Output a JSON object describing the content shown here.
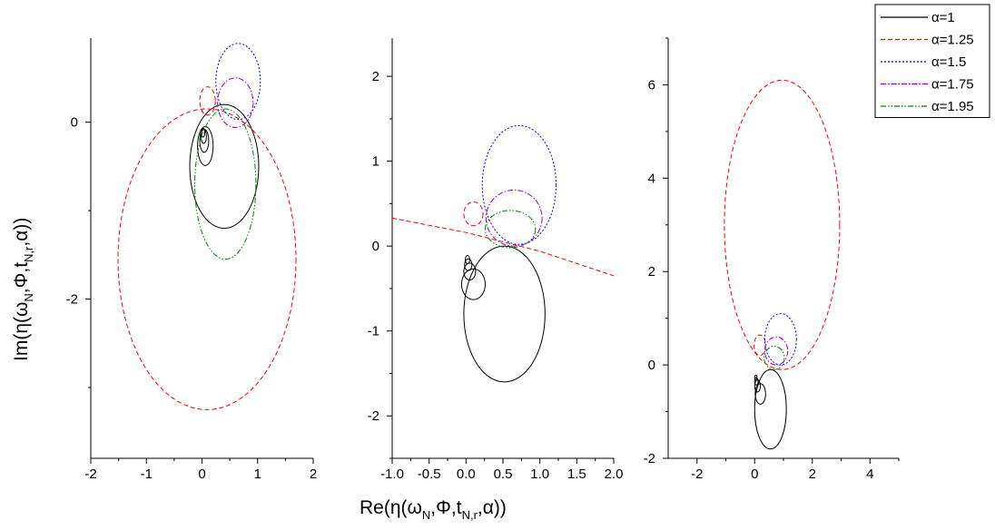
{
  "chart_data": {
    "type": "line",
    "xlabel_parts": [
      "Re(η(ω",
      "N",
      ",Φ,t",
      "N,r",
      ",α))"
    ],
    "ylabel_parts": [
      "Im(η(ω",
      "N",
      ",Φ,t",
      "N,r",
      ",α))"
    ],
    "legend": {
      "placement": "top-right",
      "entries": [
        {
          "label": "α=1",
          "color": "#000000",
          "dash": "solid"
        },
        {
          "label": "α=1.25",
          "color": "#ff0000",
          "dash": "dashed"
        },
        {
          "label": "α=1.5",
          "color": "#0000ff",
          "dash": "dotted"
        },
        {
          "label": "α=1.75",
          "color": "#9900cc",
          "dash": "dashdot"
        },
        {
          "label": "α=1.95",
          "color": "#008000",
          "dash": "dashdotdot"
        }
      ]
    },
    "panels": [
      {
        "name": "left",
        "xlim": [
          -2,
          2
        ],
        "ylim": [
          -3.8,
          0.95
        ],
        "xticks": [
          -2,
          -1,
          0,
          1,
          2
        ],
        "yticks": [
          -2,
          0
        ],
        "xtick_labels": [
          "-2",
          "-1",
          "0",
          "1",
          "2"
        ],
        "ytick_labels": [
          "-2",
          "0"
        ],
        "series": [
          {
            "alpha": "1",
            "curves": [
              {
                "center": [
                  0.4,
                  -0.5
                ],
                "rx": 0.62,
                "ry": 0.7
              },
              {
                "center": [
                  0.06,
                  -0.27
                ],
                "rx": 0.14,
                "ry": 0.22
              },
              {
                "center": [
                  0.04,
                  -0.21
                ],
                "rx": 0.08,
                "ry": 0.13
              },
              {
                "center": [
                  0.03,
                  -0.16
                ],
                "rx": 0.05,
                "ry": 0.08
              },
              {
                "center": [
                  0.02,
                  -0.12
                ],
                "rx": 0.03,
                "ry": 0.05
              }
            ]
          },
          {
            "alpha": "1.25",
            "curves": [
              {
                "center": [
                  0.09,
                  -1.55
                ],
                "rx": 1.6,
                "ry": 1.7
              },
              {
                "center": [
                  0.1,
                  0.24
                ],
                "rx": 0.14,
                "ry": 0.16
              }
            ]
          },
          {
            "alpha": "1.5",
            "curves": [
              {
                "center": [
                  0.65,
                  0.46
                ],
                "rx": 0.4,
                "ry": 0.43
              }
            ]
          },
          {
            "alpha": "1.75",
            "curves": [
              {
                "center": [
                  0.6,
                  0.22
                ],
                "rx": 0.32,
                "ry": 0.28
              }
            ]
          },
          {
            "alpha": "1.95",
            "curves": [
              {
                "center": [
                  0.42,
                  -0.7
                ],
                "rx": 0.55,
                "ry": 0.85
              }
            ]
          }
        ]
      },
      {
        "name": "middle",
        "xlim": [
          -1.0,
          2.0
        ],
        "ylim": [
          -2.5,
          2.45
        ],
        "xticks": [
          -1.0,
          -0.5,
          0.0,
          0.5,
          1.0,
          1.5,
          2.0
        ],
        "yticks": [
          -2,
          -1,
          0,
          1,
          2
        ],
        "xtick_labels": [
          "-1.0",
          "-0.5",
          "0.0",
          "0.5",
          "1.0",
          "1.5",
          "2.0"
        ],
        "ytick_labels": [
          "-2",
          "-1",
          "0",
          "1",
          "2"
        ],
        "series": [
          {
            "alpha": "1",
            "curves": [
              {
                "center": [
                  0.52,
                  -0.8
                ],
                "rx": 0.55,
                "ry": 0.8
              },
              {
                "center": [
                  0.1,
                  -0.45
                ],
                "rx": 0.16,
                "ry": 0.18
              },
              {
                "center": [
                  0.05,
                  -0.3
                ],
                "rx": 0.08,
                "ry": 0.1
              },
              {
                "center": [
                  0.03,
                  -0.22
                ],
                "rx": 0.05,
                "ry": 0.07
              },
              {
                "center": [
                  0.02,
                  -0.16
                ],
                "rx": 0.03,
                "ry": 0.05
              }
            ]
          },
          {
            "alpha": "1.25",
            "curves": [
              {
                "center": [
                  0.1,
                  0.38
                ],
                "rx": 0.13,
                "ry": 0.14
              }
            ],
            "line": [
              [
                -1.0,
                0.33
              ],
              [
                0.0,
                0.16
              ],
              [
                1.0,
                -0.06
              ],
              [
                2.0,
                -0.35
              ]
            ]
          },
          {
            "alpha": "1.5",
            "curves": [
              {
                "center": [
                  0.72,
                  0.72
                ],
                "rx": 0.5,
                "ry": 0.7
              }
            ]
          },
          {
            "alpha": "1.75",
            "curves": [
              {
                "center": [
                  0.65,
                  0.33
                ],
                "rx": 0.38,
                "ry": 0.33
              }
            ]
          },
          {
            "alpha": "1.95",
            "curves": [
              {
                "center": [
                  0.6,
                  0.2
                ],
                "rx": 0.34,
                "ry": 0.22
              }
            ]
          }
        ]
      },
      {
        "name": "right",
        "xlim": [
          -3,
          5
        ],
        "ylim": [
          -2,
          7
        ],
        "xticks": [
          -2,
          0,
          2,
          4
        ],
        "yticks": [
          -2,
          0,
          2,
          4,
          6
        ],
        "xtick_labels": [
          "-2",
          "0",
          "2",
          "4"
        ],
        "ytick_labels": [
          "-2",
          "0",
          "2",
          "4",
          "6"
        ],
        "series": [
          {
            "alpha": "1",
            "curves": [
              {
                "center": [
                  0.55,
                  -0.95
                ],
                "rx": 0.55,
                "ry": 0.85
              },
              {
                "center": [
                  0.2,
                  -0.62
                ],
                "rx": 0.18,
                "ry": 0.22
              },
              {
                "center": [
                  0.1,
                  -0.45
                ],
                "rx": 0.1,
                "ry": 0.13
              },
              {
                "center": [
                  0.06,
                  -0.35
                ],
                "rx": 0.06,
                "ry": 0.08
              },
              {
                "center": [
                  0.04,
                  -0.27
                ],
                "rx": 0.04,
                "ry": 0.05
              }
            ]
          },
          {
            "alpha": "1.25",
            "curves": [
              {
                "center": [
                  0.95,
                  3.0
                ],
                "rx": 2.0,
                "ry": 3.1
              },
              {
                "center": [
                  0.18,
                  0.42
                ],
                "rx": 0.2,
                "ry": 0.22
              }
            ]
          },
          {
            "alpha": "1.5",
            "curves": [
              {
                "center": [
                  0.9,
                  0.55
                ],
                "rx": 0.55,
                "ry": 0.55
              }
            ]
          },
          {
            "alpha": "1.75",
            "curves": [
              {
                "center": [
                  0.75,
                  0.3
                ],
                "rx": 0.4,
                "ry": 0.3
              }
            ]
          },
          {
            "alpha": "1.95",
            "curves": [
              {
                "center": [
                  0.68,
                  0.15
                ],
                "rx": 0.35,
                "ry": 0.25
              }
            ]
          }
        ]
      }
    ]
  }
}
